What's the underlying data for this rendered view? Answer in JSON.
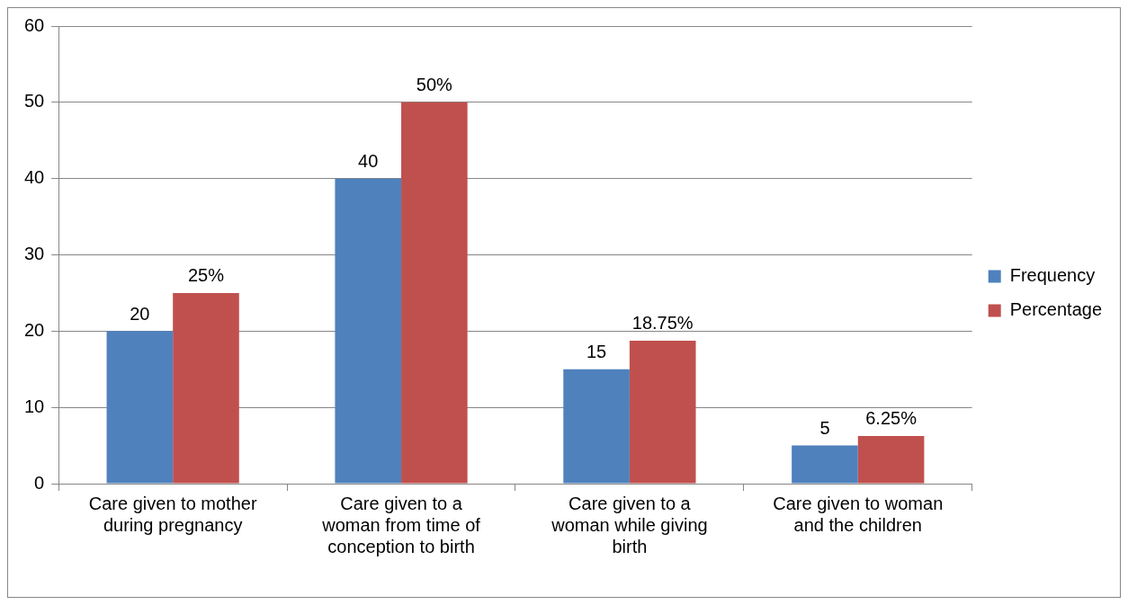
{
  "chart_data": {
    "type": "bar",
    "categories": [
      "Care given to mother during pregnancy",
      "Care given to a woman from time of conception to birth",
      "Care given to a woman while giving birth",
      "Care given to woman and the children"
    ],
    "series": [
      {
        "name": "Frequency",
        "color": "#4f81bd",
        "values": [
          20,
          40,
          15,
          5
        ],
        "value_labels": [
          "20",
          "40",
          "15",
          "5"
        ]
      },
      {
        "name": "Percentage",
        "color": "#c0504d",
        "values": [
          25,
          50,
          18.75,
          6.25
        ],
        "value_labels": [
          "25%",
          "50%",
          "18.75%",
          "6.25%"
        ]
      }
    ],
    "ylim": [
      0,
      60
    ],
    "yticks": [
      0,
      10,
      20,
      30,
      40,
      50,
      60
    ],
    "grid": "y",
    "legend": "right"
  }
}
